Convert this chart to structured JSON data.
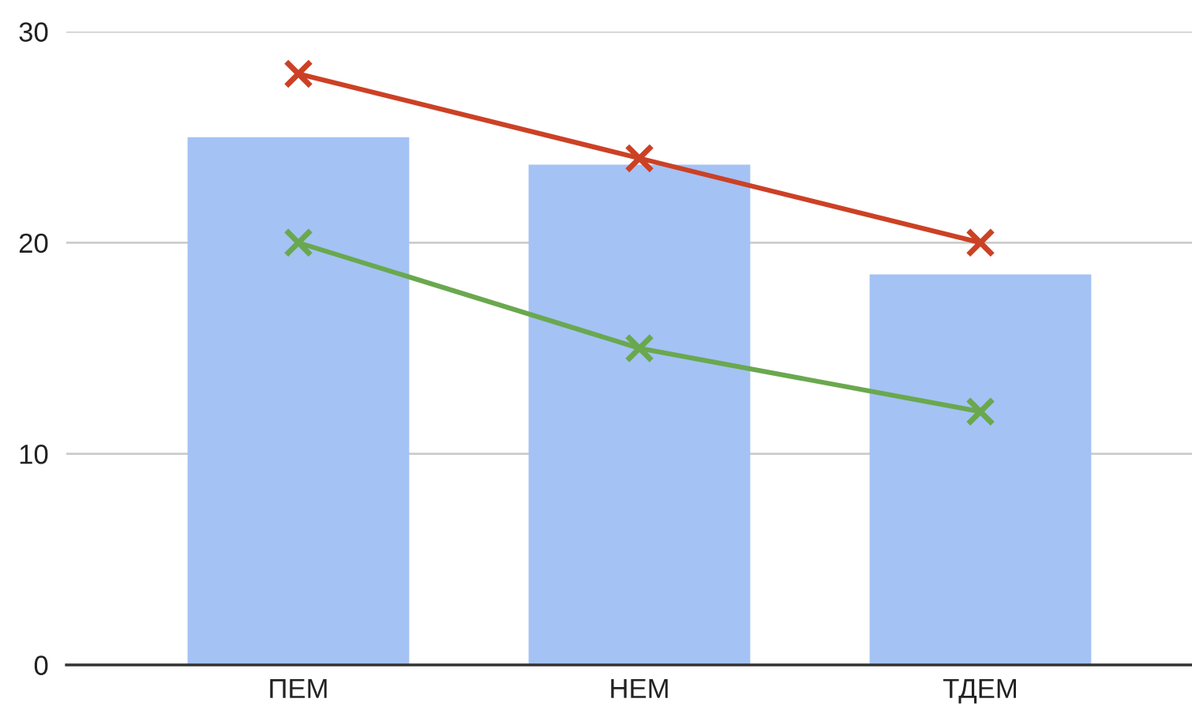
{
  "chart_data": {
    "type": "bar",
    "categories": [
      "ПЕМ",
      "НЕМ",
      "ТДЕМ"
    ],
    "series": [
      {
        "color": "#a4c2f4",
        "values": [
          25,
          23.7,
          18.5
        ]
      },
      {
        "type": "line",
        "color": "#cc4125",
        "values": [
          28,
          24,
          20
        ],
        "marker": "cross"
      },
      {
        "type": "line",
        "color": "#6aa84f",
        "values": [
          20,
          15,
          12
        ],
        "marker": "cross"
      }
    ],
    "ylim": [
      0,
      30
    ],
    "yticks": [
      0,
      10,
      20,
      30
    ],
    "grid": "y",
    "line_style": "solid"
  }
}
